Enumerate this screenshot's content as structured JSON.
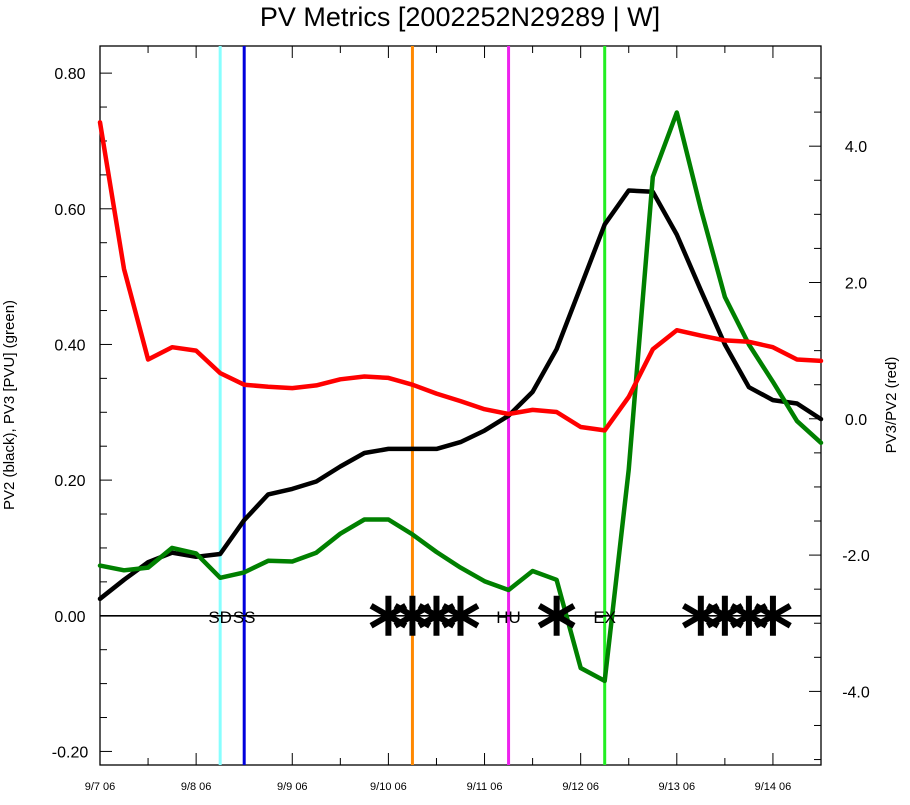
{
  "chart_data": {
    "type": "line",
    "title": "PV Metrics [2002252N29289 | W]",
    "ylabel_left": "PV2 (black), PV3 [PVU] (green)",
    "ylabel_right": "PV3/PV2 (red)",
    "x_tick_labels": [
      "9/7 06",
      "9/8 06",
      "9/9 06",
      "9/10 06",
      "9/11 06",
      "9/12 06",
      "9/13 06",
      "9/14 06"
    ],
    "x_range_days": [
      0,
      7.5
    ],
    "left_axis": {
      "ylim": [
        -0.22,
        0.84
      ],
      "ticks": [
        -0.2,
        0.0,
        0.2,
        0.4,
        0.6,
        0.8
      ],
      "tick_labels": [
        "-0.20",
        "0.00",
        "0.20",
        "0.40",
        "0.60",
        "0.80"
      ]
    },
    "right_axis": {
      "ylim": [
        -5.08,
        5.47
      ],
      "ticks": [
        -4.0,
        -2.0,
        0.0,
        2.0,
        4.0
      ],
      "tick_labels": [
        "-4.0",
        "-2.0",
        "0.0",
        "2.0",
        "4.0"
      ]
    },
    "zero_line": 0.0,
    "series": [
      {
        "name": "PV2",
        "color": "#000000",
        "axis": "left",
        "x": [
          0,
          0.25,
          0.5,
          0.75,
          1.0,
          1.25,
          1.5,
          1.75,
          2.0,
          2.25,
          2.5,
          2.75,
          3.0,
          3.25,
          3.5,
          3.75,
          4.0,
          4.25,
          4.5,
          4.75,
          5.0,
          5.25,
          5.5,
          5.75,
          6.0,
          6.25,
          6.5,
          6.75,
          7.0,
          7.25,
          7.5
        ],
        "y": [
          0.025,
          0.053,
          0.079,
          0.093,
          0.087,
          0.091,
          0.141,
          0.179,
          0.187,
          0.198,
          0.22,
          0.24,
          0.246,
          0.246,
          0.246,
          0.256,
          0.273,
          0.295,
          0.33,
          0.393,
          0.485,
          0.577,
          0.627,
          0.625,
          0.562,
          0.48,
          0.4,
          0.337,
          0.318,
          0.313,
          0.29
        ]
      },
      {
        "name": "PV3",
        "color": "#008000",
        "axis": "left",
        "x": [
          0,
          0.25,
          0.5,
          0.75,
          1.0,
          1.25,
          1.5,
          1.75,
          2.0,
          2.25,
          2.5,
          2.75,
          3.0,
          3.25,
          3.5,
          3.75,
          4.0,
          4.25,
          4.5,
          4.75,
          5.0,
          5.25,
          5.5,
          5.75,
          6.0,
          6.25,
          6.5,
          6.75,
          7.0,
          7.25,
          7.5
        ],
        "y": [
          0.074,
          0.067,
          0.071,
          0.1,
          0.092,
          0.056,
          0.064,
          0.081,
          0.08,
          0.093,
          0.121,
          0.142,
          0.142,
          0.12,
          0.094,
          0.071,
          0.051,
          0.038,
          0.066,
          0.053,
          -0.077,
          -0.096,
          0.215,
          0.647,
          0.742,
          0.6,
          0.47,
          0.4,
          0.345,
          0.287,
          0.255
        ]
      },
      {
        "name": "PV3/PV2",
        "color": "#ff0000",
        "axis": "right",
        "x": [
          0,
          0.25,
          0.5,
          0.75,
          1.0,
          1.25,
          1.5,
          1.75,
          2.0,
          2.25,
          2.5,
          2.75,
          3.0,
          3.25,
          3.5,
          3.75,
          4.0,
          4.25,
          4.5,
          4.75,
          5.0,
          5.25,
          5.5,
          5.75,
          6.0,
          6.25,
          6.5,
          6.75,
          7.0,
          7.25,
          7.5
        ],
        "y": [
          4.35,
          2.2,
          0.87,
          1.05,
          1.0,
          0.67,
          0.5,
          0.47,
          0.45,
          0.49,
          0.58,
          0.62,
          0.6,
          0.5,
          0.37,
          0.26,
          0.14,
          0.07,
          0.13,
          0.1,
          -0.12,
          -0.17,
          0.32,
          1.02,
          1.3,
          1.22,
          1.15,
          1.13,
          1.05,
          0.87,
          0.85
        ]
      }
    ],
    "vertical_lines": [
      {
        "x": 1.25,
        "color": "#88ffff"
      },
      {
        "x": 1.5,
        "color": "#0000dd"
      },
      {
        "x": 3.25,
        "color": "#ff8800"
      },
      {
        "x": 4.25,
        "color": "#ee22ee"
      },
      {
        "x": 5.25,
        "color": "#22ee22"
      }
    ],
    "annotations": [
      {
        "text": "SD",
        "x": 1.25
      },
      {
        "text": "SS",
        "x": 1.5
      },
      {
        "text": "HU",
        "x": 4.25
      },
      {
        "text": "EX",
        "x": 5.25
      }
    ],
    "asterisks": [
      3.0,
      3.25,
      3.5,
      3.75,
      4.75,
      6.25,
      6.5,
      6.75,
      7.0
    ]
  }
}
